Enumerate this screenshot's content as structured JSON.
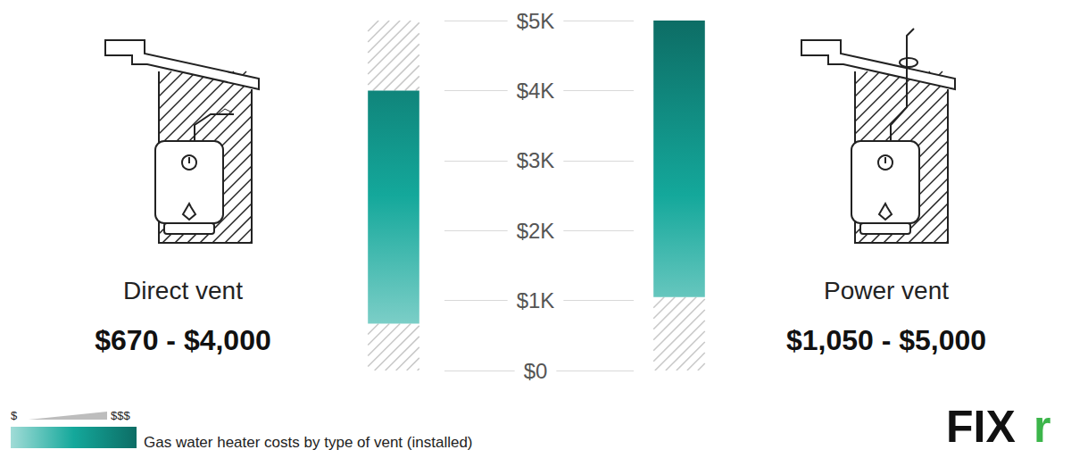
{
  "chart_data": {
    "type": "range_bar",
    "categories": [
      "Direct vent",
      "Power vent"
    ],
    "values": [
      [
        670,
        4000
      ],
      [
        1050,
        5000
      ]
    ],
    "value_labels": [
      "$670 - $4,000",
      "$1,050 - $5,000"
    ],
    "color": "#14a89b",
    "ylim": [
      0,
      5000
    ],
    "yticks": [
      {
        "value": 0,
        "label": "$0"
      },
      {
        "value": 1000,
        "label": "$1K"
      },
      {
        "value": 2000,
        "label": "$2K"
      },
      {
        "value": 3000,
        "label": "$3K"
      },
      {
        "value": 4000,
        "label": "$4K"
      },
      {
        "value": 5000,
        "label": "$5K"
      }
    ],
    "grid": true,
    "data_labels": true,
    "legend_labels": [
      "$",
      "$$$"
    ],
    "caption": "Gas water heater costs by type of vent (installed)",
    "brand": "FIXr"
  }
}
